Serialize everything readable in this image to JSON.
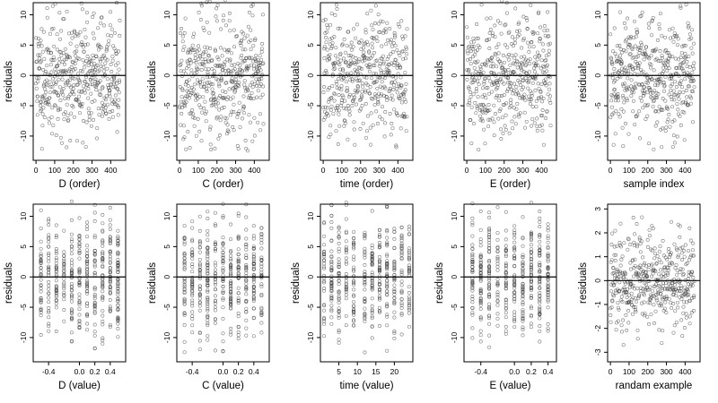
{
  "figure": {
    "layout": "2 rows x 5 columns",
    "background": "#ffffff",
    "point_color": "#444444",
    "point_marker": "open-circle"
  },
  "chart_data": [
    {
      "type": "scatter",
      "xlabel": "D (order)",
      "ylabel": "residuals",
      "xlim": [
        -15,
        480
      ],
      "ylim": [
        -14,
        12
      ],
      "xticks": [
        "0",
        "100",
        "200",
        "300",
        "400"
      ],
      "xtick_values": [
        0,
        100,
        200,
        300,
        400
      ],
      "yticks": [
        "-10",
        "-5",
        "0",
        "5",
        "10"
      ],
      "ytick_values": [
        -10,
        -5,
        0,
        5,
        10
      ],
      "hline": 0,
      "n_points": 450,
      "seed": 11,
      "x_kind": "index",
      "y_sd": 4.8
    },
    {
      "type": "scatter",
      "xlabel": "C (order)",
      "ylabel": "residuals",
      "xlim": [
        -15,
        480
      ],
      "ylim": [
        -14,
        12
      ],
      "xticks": [
        "0",
        "100",
        "200",
        "300",
        "400"
      ],
      "xtick_values": [
        0,
        100,
        200,
        300,
        400
      ],
      "yticks": [
        "-10",
        "-5",
        "0",
        "5",
        "10"
      ],
      "ytick_values": [
        -10,
        -5,
        0,
        5,
        10
      ],
      "hline": 0,
      "n_points": 450,
      "seed": 23,
      "x_kind": "index",
      "y_sd": 4.8
    },
    {
      "type": "scatter",
      "xlabel": "time (order)",
      "ylabel": "residuals",
      "xlim": [
        -15,
        480
      ],
      "ylim": [
        -14,
        12
      ],
      "xticks": [
        "0",
        "100",
        "200",
        "300",
        "400"
      ],
      "xtick_values": [
        0,
        100,
        200,
        300,
        400
      ],
      "yticks": [
        "-10",
        "-5",
        "0",
        "5",
        "10"
      ],
      "ytick_values": [
        -10,
        -5,
        0,
        5,
        10
      ],
      "hline": 0,
      "n_points": 450,
      "seed": 37,
      "x_kind": "index",
      "y_sd": 4.8
    },
    {
      "type": "scatter",
      "xlabel": "E (order)",
      "ylabel": "residuals",
      "xlim": [
        -15,
        480
      ],
      "ylim": [
        -14,
        12
      ],
      "xticks": [
        "0",
        "100",
        "200",
        "300",
        "400"
      ],
      "xtick_values": [
        0,
        100,
        200,
        300,
        400
      ],
      "yticks": [
        "-10",
        "-5",
        "0",
        "5",
        "10"
      ],
      "ytick_values": [
        -10,
        -5,
        0,
        5,
        10
      ],
      "hline": 0,
      "n_points": 450,
      "seed": 41,
      "x_kind": "index",
      "y_sd": 4.8
    },
    {
      "type": "scatter",
      "xlabel": "sample index",
      "ylabel": "residuals",
      "xlim": [
        -15,
        480
      ],
      "ylim": [
        -14,
        12
      ],
      "xticks": [
        "0",
        "100",
        "200",
        "300",
        "400"
      ],
      "xtick_values": [
        0,
        100,
        200,
        300,
        400
      ],
      "yticks": [
        "-10",
        "-5",
        "0",
        "5",
        "10"
      ],
      "ytick_values": [
        -10,
        -5,
        0,
        5,
        10
      ],
      "hline": 0,
      "n_points": 450,
      "seed": 53,
      "x_kind": "index",
      "y_sd": 4.8
    },
    {
      "type": "scatter",
      "xlabel": "D (value)",
      "ylabel": "residuals",
      "xlim": [
        -0.6,
        0.6
      ],
      "ylim": [
        -14,
        12
      ],
      "xticks": [
        "-0.4",
        "0.0",
        "0.2",
        "0.4"
      ],
      "xtick_values": [
        -0.4,
        0.0,
        0.2,
        0.4
      ],
      "yticks": [
        "-10",
        "-5",
        "0",
        "5",
        "10"
      ],
      "ytick_values": [
        -10,
        -5,
        0,
        5,
        10
      ],
      "hline": 0,
      "n_points": 450,
      "seed": 61,
      "x_kind": "values",
      "x_values": [
        -0.5,
        -0.4,
        -0.3,
        -0.2,
        -0.1,
        0.0,
        0.1,
        0.2,
        0.3,
        0.4,
        0.5
      ],
      "y_sd": 4.8
    },
    {
      "type": "scatter",
      "xlabel": "C (value)",
      "ylabel": "residuals",
      "xlim": [
        -0.6,
        0.6
      ],
      "ylim": [
        -14,
        12
      ],
      "xticks": [
        "-0.4",
        "0.0",
        "0.2",
        "0.4"
      ],
      "xtick_values": [
        -0.4,
        0.0,
        0.2,
        0.4
      ],
      "yticks": [
        "-10",
        "-5",
        "0",
        "5",
        "10"
      ],
      "ytick_values": [
        -10,
        -5,
        0,
        5,
        10
      ],
      "hline": 0,
      "n_points": 450,
      "seed": 71,
      "x_kind": "values",
      "x_values": [
        -0.5,
        -0.4,
        -0.3,
        -0.2,
        -0.1,
        0.0,
        0.1,
        0.2,
        0.3,
        0.4,
        0.5
      ],
      "y_sd": 4.8
    },
    {
      "type": "scatter",
      "xlabel": "time (value)",
      "ylabel": "residuals",
      "xlim": [
        0,
        25
      ],
      "ylim": [
        -14,
        12
      ],
      "xticks": [
        "5",
        "10",
        "15",
        "20"
      ],
      "xtick_values": [
        5,
        10,
        15,
        20
      ],
      "yticks": [
        "-10",
        "-5",
        "0",
        "5",
        "10"
      ],
      "ytick_values": [
        -10,
        -5,
        0,
        5,
        10
      ],
      "hline": 0,
      "n_points": 450,
      "seed": 83,
      "x_kind": "values",
      "x_values": [
        1,
        3,
        5,
        7,
        9,
        12,
        14,
        16,
        18,
        20,
        22,
        24
      ],
      "y_sd": 4.8
    },
    {
      "type": "scatter",
      "xlabel": "E (value)",
      "ylabel": "residuals",
      "xlim": [
        -0.6,
        0.5
      ],
      "ylim": [
        -14,
        12
      ],
      "xticks": [
        "-0.4",
        "0.0",
        "0.2",
        "0.4"
      ],
      "xtick_values": [
        -0.4,
        0.0,
        0.2,
        0.4
      ],
      "yticks": [
        "-10",
        "-5",
        "0",
        "5",
        "10"
      ],
      "ytick_values": [
        -10,
        -5,
        0,
        5,
        10
      ],
      "hline": 0,
      "n_points": 450,
      "seed": 97,
      "x_kind": "values",
      "x_values": [
        -0.5,
        -0.4,
        -0.3,
        -0.2,
        -0.1,
        0.0,
        0.1,
        0.2,
        0.3,
        0.4
      ],
      "y_sd": 4.8
    },
    {
      "type": "scatter",
      "xlabel": "randam example",
      "ylabel": "residuals",
      "xlim": [
        -15,
        480
      ],
      "ylim": [
        -3.4,
        3.2
      ],
      "xticks": [
        "0",
        "100",
        "200",
        "300",
        "400"
      ],
      "xtick_values": [
        0,
        100,
        200,
        300,
        400
      ],
      "yticks": [
        "-3",
        "-2",
        "-1",
        "0",
        "1",
        "2",
        "3"
      ],
      "ytick_values": [
        -3,
        -2,
        -1,
        0,
        1,
        2,
        3
      ],
      "hline": 0,
      "n_points": 450,
      "seed": 103,
      "x_kind": "index",
      "y_sd": 1.0
    }
  ]
}
